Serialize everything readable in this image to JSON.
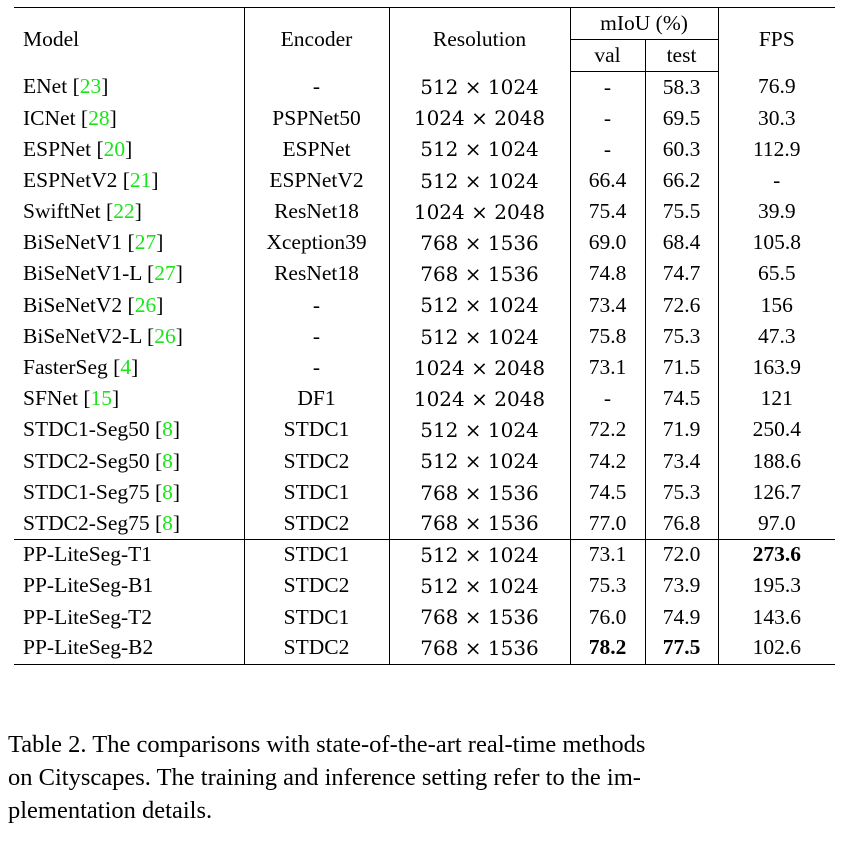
{
  "table": {
    "headers": {
      "model": "Model",
      "encoder": "Encoder",
      "resolution": "Resolution",
      "miou_group": "mIoU (%)",
      "val": "val",
      "test": "test",
      "fps": "FPS"
    },
    "rows": [
      {
        "model": "ENet",
        "cite": "23",
        "encoder": "-",
        "resolution": "512 × 1024",
        "val": "-",
        "test": "58.3",
        "fps": "76.9"
      },
      {
        "model": "ICNet",
        "cite": "28",
        "encoder": "PSPNet50",
        "resolution": "1024 × 2048",
        "val": "-",
        "test": "69.5",
        "fps": "30.3"
      },
      {
        "model": "ESPNet",
        "cite": "20",
        "encoder": "ESPNet",
        "resolution": "512 × 1024",
        "val": "-",
        "test": "60.3",
        "fps": "112.9"
      },
      {
        "model": "ESPNetV2",
        "cite": "21",
        "encoder": "ESPNetV2",
        "resolution": "512 × 1024",
        "val": "66.4",
        "test": "66.2",
        "fps": "-"
      },
      {
        "model": "SwiftNet",
        "cite": "22",
        "encoder": "ResNet18",
        "resolution": "1024 × 2048",
        "val": "75.4",
        "test": "75.5",
        "fps": "39.9"
      },
      {
        "model": "BiSeNetV1",
        "cite": "27",
        "encoder": "Xception39",
        "resolution": "768 × 1536",
        "val": "69.0",
        "test": "68.4",
        "fps": "105.8"
      },
      {
        "model": "BiSeNetV1-L",
        "cite": "27",
        "encoder": "ResNet18",
        "resolution": "768 × 1536",
        "val": "74.8",
        "test": "74.7",
        "fps": "65.5"
      },
      {
        "model": "BiSeNetV2",
        "cite": "26",
        "encoder": "-",
        "resolution": "512 × 1024",
        "val": "73.4",
        "test": "72.6",
        "fps": "156"
      },
      {
        "model": "BiSeNetV2-L",
        "cite": "26",
        "encoder": "-",
        "resolution": "512 × 1024",
        "val": "75.8",
        "test": "75.3",
        "fps": "47.3"
      },
      {
        "model": "FasterSeg",
        "cite": "4",
        "encoder": "-",
        "resolution": "1024 × 2048",
        "val": "73.1",
        "test": "71.5",
        "fps": "163.9"
      },
      {
        "model": "SFNet",
        "cite": "15",
        "encoder": "DF1",
        "resolution": "1024 × 2048",
        "val": "-",
        "test": "74.5",
        "fps": "121"
      },
      {
        "model": "STDC1-Seg50",
        "cite": "8",
        "encoder": "STDC1",
        "resolution": "512 × 1024",
        "val": "72.2",
        "test": "71.9",
        "fps": "250.4"
      },
      {
        "model": "STDC2-Seg50",
        "cite": "8",
        "encoder": "STDC2",
        "resolution": "512 × 1024",
        "val": "74.2",
        "test": "73.4",
        "fps": "188.6"
      },
      {
        "model": "STDC1-Seg75",
        "cite": "8",
        "encoder": "STDC1",
        "resolution": "768 × 1536",
        "val": "74.5",
        "test": "75.3",
        "fps": "126.7"
      },
      {
        "model": "STDC2-Seg75",
        "cite": "8",
        "encoder": "STDC2",
        "resolution": "768 × 1536",
        "val": "77.0",
        "test": "76.8",
        "fps": "97.0"
      },
      {
        "model": "PP-LiteSeg-T1",
        "cite": "",
        "encoder": "STDC1",
        "resolution": "512 × 1024",
        "val": "73.1",
        "test": "72.0",
        "fps": "273.6",
        "bold_fps": true
      },
      {
        "model": "PP-LiteSeg-B1",
        "cite": "",
        "encoder": "STDC2",
        "resolution": "512 × 1024",
        "val": "75.3",
        "test": "73.9",
        "fps": "195.3"
      },
      {
        "model": "PP-LiteSeg-T2",
        "cite": "",
        "encoder": "STDC1",
        "resolution": "768 × 1536",
        "val": "76.0",
        "test": "74.9",
        "fps": "143.6"
      },
      {
        "model": "PP-LiteSeg-B2",
        "cite": "",
        "encoder": "STDC2",
        "resolution": "768 × 1536",
        "val": "78.2",
        "test": "77.5",
        "fps": "102.6",
        "bold_val": true,
        "bold_test": true
      }
    ],
    "group_break_index": 15
  },
  "caption": {
    "lines": [
      "Table 2. The comparisons with state-of-the-art real-time methods",
      "on Cityscapes. The training and inference setting refer to the im-",
      "plementation details."
    ]
  },
  "colors": {
    "citation": "#19e619",
    "text": "#000000"
  }
}
